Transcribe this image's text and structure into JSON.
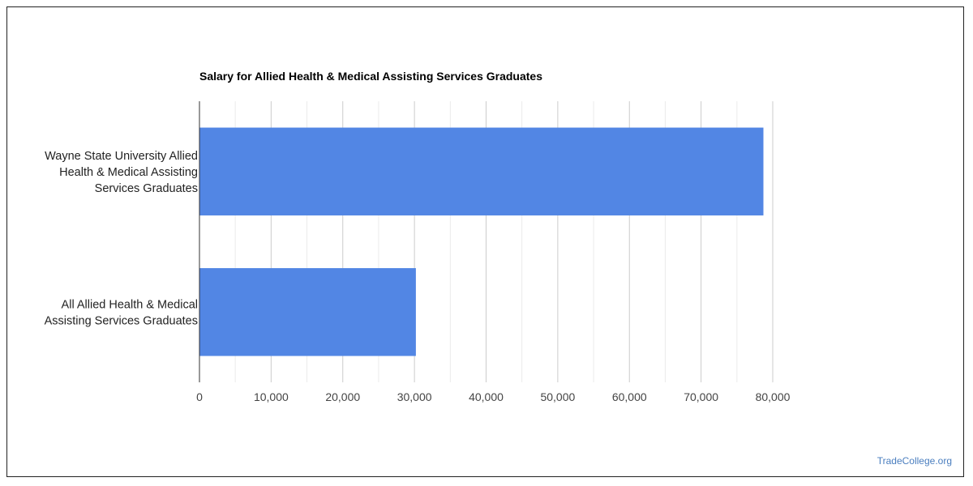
{
  "chart_data": {
    "type": "bar",
    "orientation": "horizontal",
    "title": "Salary for Allied Health & Medical Assisting Services Graduates",
    "categories": [
      [
        "Wayne State University Allied",
        "Health & Medical Assisting",
        "Services Graduates"
      ],
      [
        "All Allied Health & Medical",
        "Assisting Services Graduates"
      ]
    ],
    "values": [
      78700,
      30200
    ],
    "xlim": [
      0,
      80000
    ],
    "x_ticks": [
      0,
      10000,
      20000,
      30000,
      40000,
      50000,
      60000,
      70000,
      80000
    ],
    "x_tick_labels": [
      "0",
      "10,000",
      "20,000",
      "30,000",
      "40,000",
      "50,000",
      "60,000",
      "70,000",
      "80,000"
    ],
    "grid": true,
    "bar_color": "#5286e4"
  },
  "credit": "TradeCollege.org"
}
